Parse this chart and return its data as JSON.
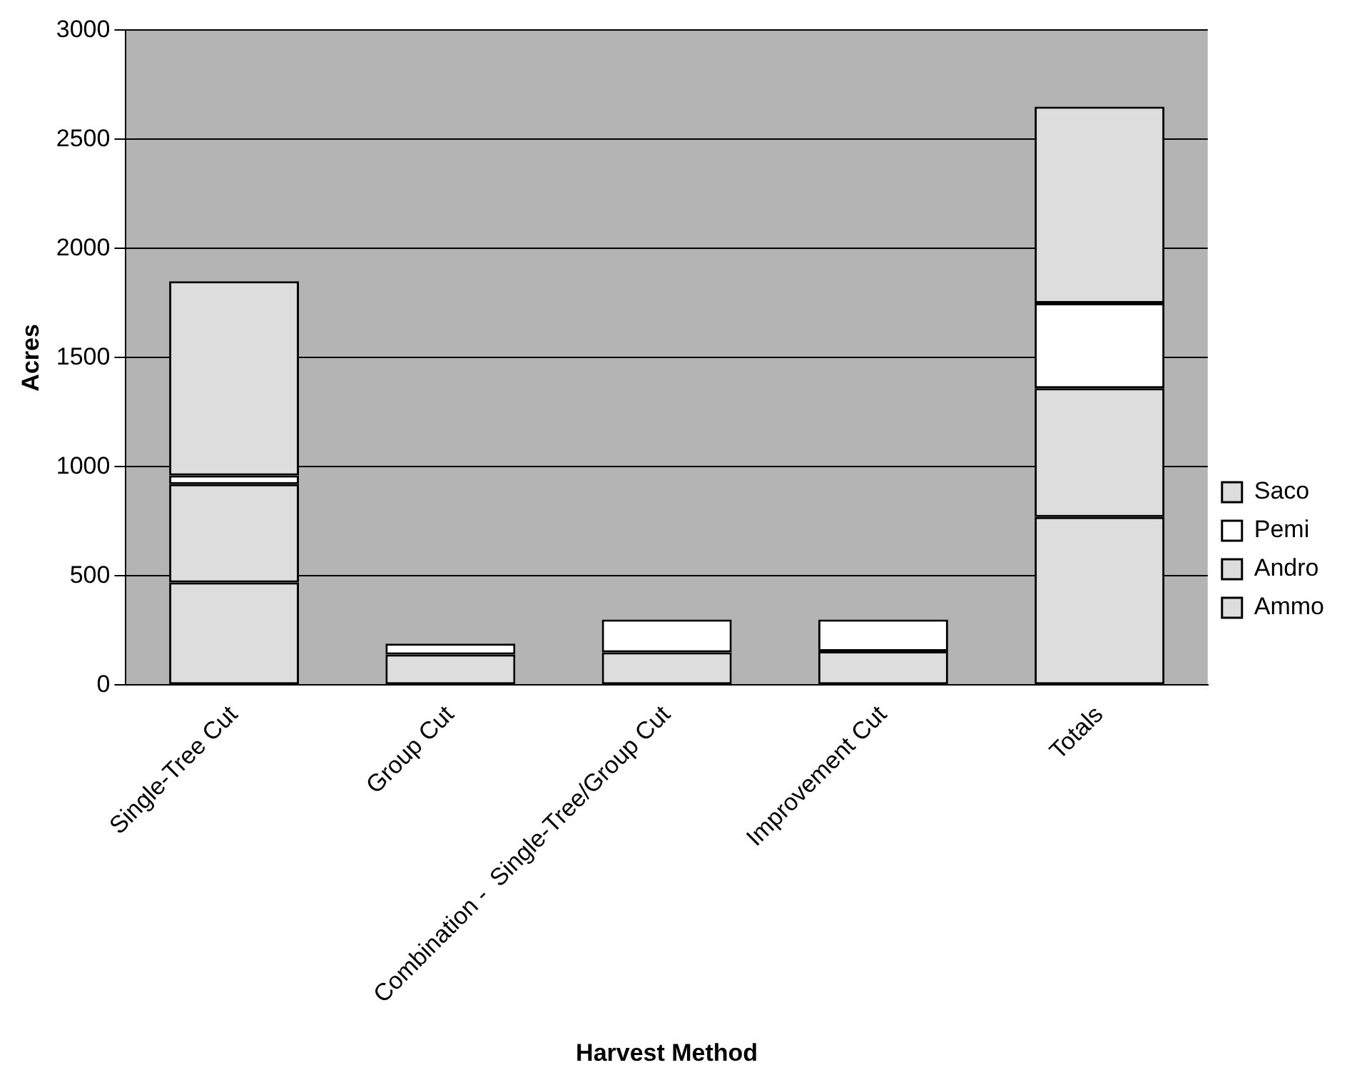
{
  "chart_data": {
    "type": "bar",
    "stacked": true,
    "xlabel": "Harvest Method",
    "ylabel": "Acres",
    "categories": [
      "Single-Tree Cut",
      "Group Cut",
      "Combination -  Single-Tree/Group Cut",
      "Improvement Cut",
      "Totals"
    ],
    "series": [
      {
        "name": "Ammo",
        "color": "#dddddd",
        "values": [
          470,
          0,
          150,
          155,
          770
        ]
      },
      {
        "name": "Andro",
        "color": "#dddddd",
        "values": [
          450,
          140,
          0,
          0,
          590
        ]
      },
      {
        "name": "Pemi",
        "color": "#ffffff",
        "values": [
          40,
          50,
          150,
          145,
          390
        ]
      },
      {
        "name": "Saco",
        "color": "#dddddd",
        "values": [
          890,
          0,
          0,
          0,
          900
        ]
      }
    ],
    "ylim": [
      0,
      3000
    ],
    "yticks": [
      0,
      500,
      1000,
      1500,
      2000,
      2500,
      3000
    ],
    "grid": "y",
    "legend": "right"
  }
}
